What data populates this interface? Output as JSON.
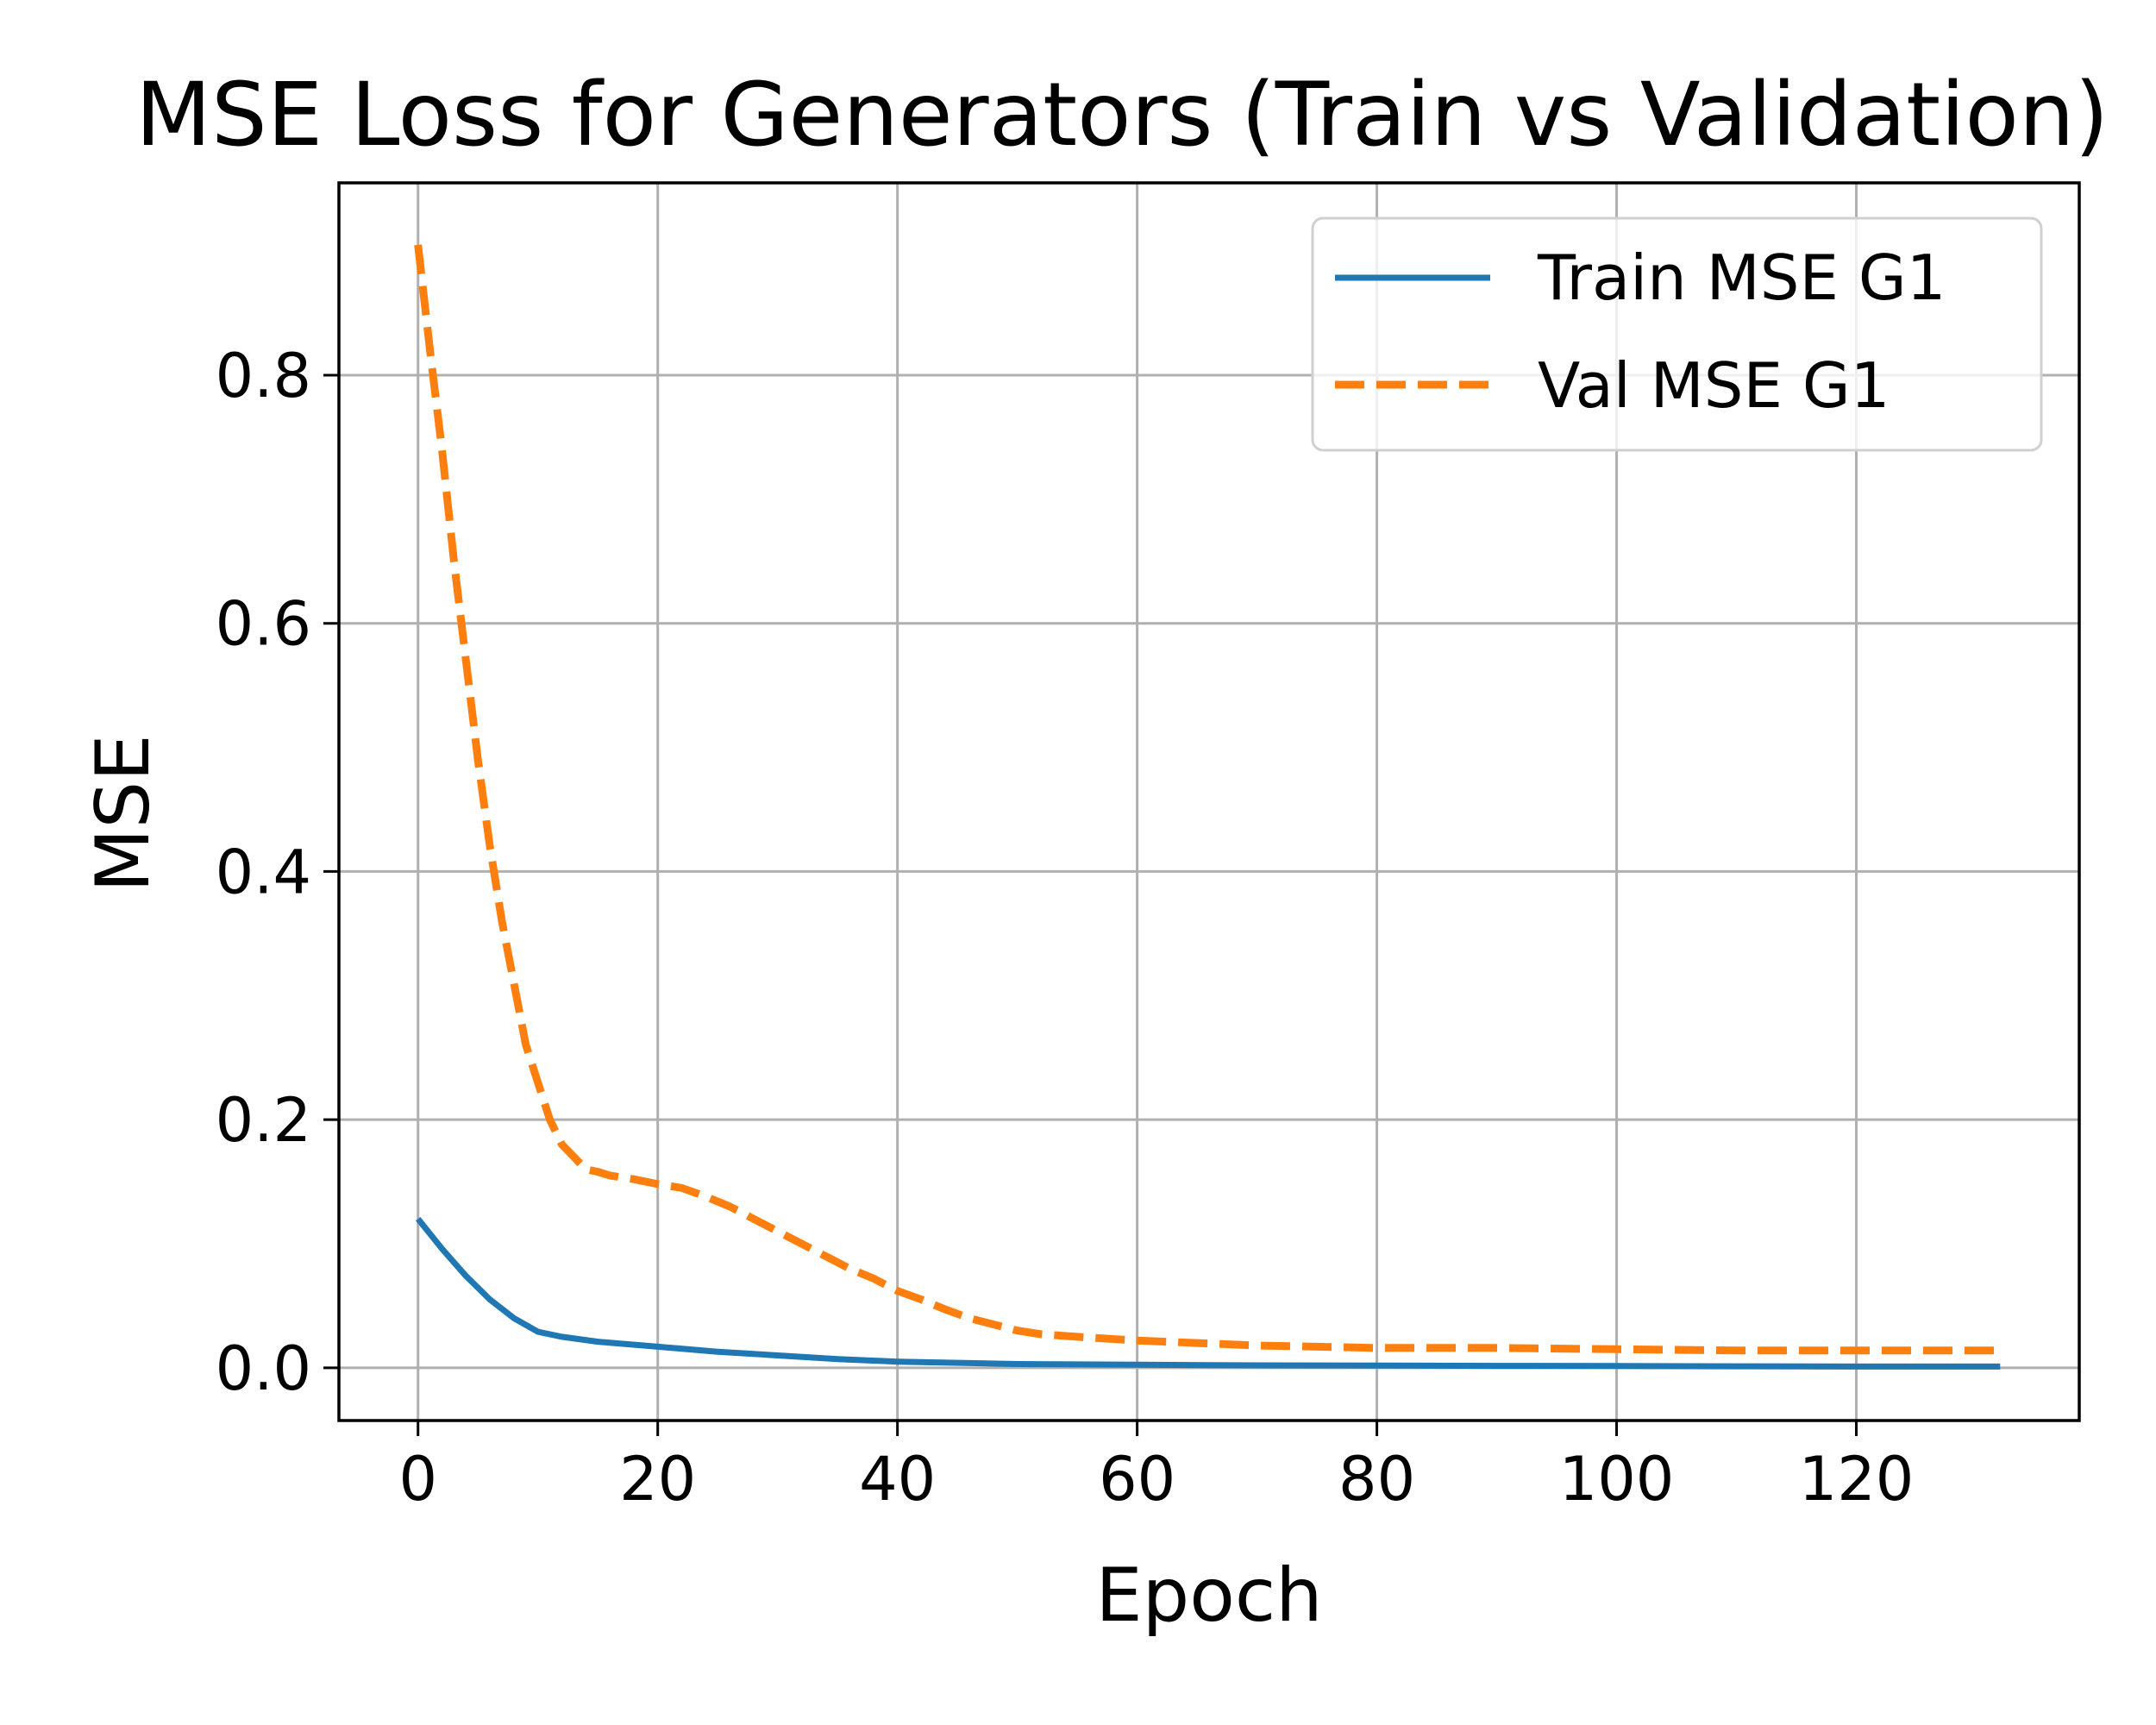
{
  "chart_data": {
    "type": "line",
    "title": "MSE Loss for Generators (Train vs Validation)",
    "xlabel": "Epoch",
    "ylabel": "MSE",
    "xlim": [
      -6.6,
      138.6
    ],
    "ylim": [
      -0.0425,
      0.955
    ],
    "xticks": [
      0,
      20,
      40,
      60,
      80,
      100,
      120
    ],
    "yticks": [
      0.0,
      0.2,
      0.4,
      0.6,
      0.8
    ],
    "xtick_labels": [
      "0",
      "20",
      "40",
      "60",
      "80",
      "100",
      "120"
    ],
    "ytick_labels": [
      "0.0",
      "0.2",
      "0.4",
      "0.6",
      "0.8"
    ],
    "grid": true,
    "legend_position": "top-right",
    "series": [
      {
        "name": "Train MSE G1",
        "color": "#1f77b4",
        "style": "solid",
        "x": [
          0,
          2,
          4,
          6,
          8,
          10,
          12,
          15,
          20,
          25,
          30,
          35,
          40,
          50,
          60,
          70,
          80,
          90,
          100,
          110,
          120,
          132
        ],
        "y": [
          0.12,
          0.096,
          0.074,
          0.055,
          0.04,
          0.029,
          0.025,
          0.021,
          0.017,
          0.013,
          0.01,
          0.007,
          0.005,
          0.003,
          0.0025,
          0.002,
          0.0018,
          0.0016,
          0.0014,
          0.0012,
          0.001,
          0.001
        ]
      },
      {
        "name": "Val MSE G1",
        "color": "#ff7f0e",
        "style": "dashed",
        "x": [
          0,
          1,
          2,
          3,
          4,
          5,
          6,
          7,
          8,
          9,
          10,
          11,
          12,
          13,
          14,
          15,
          16,
          18,
          20,
          22,
          24,
          26,
          28,
          30,
          32,
          34,
          36,
          38,
          40,
          42,
          44,
          46,
          48,
          50,
          52,
          55,
          60,
          65,
          70,
          75,
          80,
          90,
          100,
          110,
          120,
          132
        ],
        "y": [
          0.905,
          0.82,
          0.74,
          0.65,
          0.57,
          0.49,
          0.42,
          0.36,
          0.31,
          0.26,
          0.23,
          0.2,
          0.18,
          0.17,
          0.16,
          0.158,
          0.155,
          0.152,
          0.148,
          0.145,
          0.138,
          0.13,
          0.12,
          0.11,
          0.1,
          0.09,
          0.08,
          0.072,
          0.062,
          0.055,
          0.047,
          0.04,
          0.035,
          0.03,
          0.027,
          0.025,
          0.022,
          0.02,
          0.018,
          0.017,
          0.016,
          0.016,
          0.015,
          0.014,
          0.014,
          0.014
        ]
      }
    ]
  }
}
